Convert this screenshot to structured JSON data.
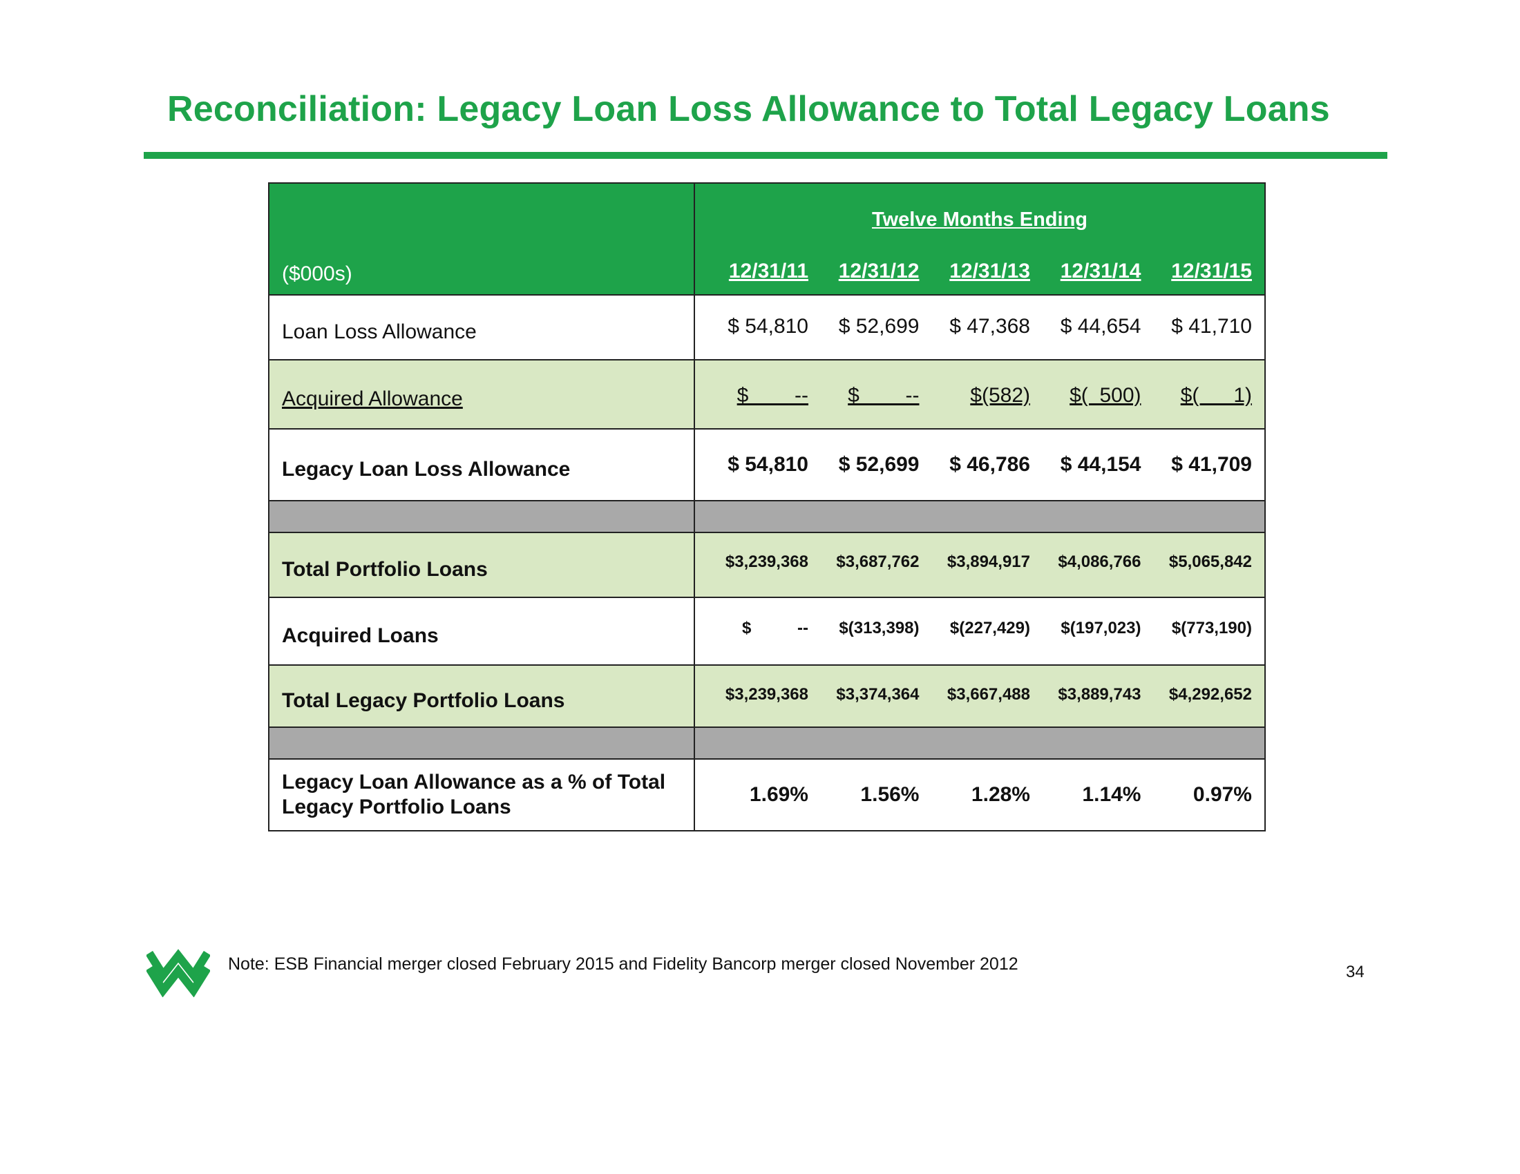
{
  "title": "Reconciliation: Legacy Loan Loss Allowance to Total Legacy Loans",
  "table": {
    "unit_label": "($000s)",
    "period_header": "Twelve Months Ending",
    "dates": [
      "12/31/11",
      "12/31/12",
      "12/31/13",
      "12/31/14",
      "12/31/15"
    ],
    "rows": {
      "loan_loss_allowance": {
        "label": "Loan Loss Allowance",
        "values": [
          "$ 54,810",
          "$ 52,699",
          "$ 47,368",
          "$ 44,654",
          "$ 41,710"
        ]
      },
      "acquired_allowance": {
        "label": "Acquired Allowance",
        "values": [
          "$        --",
          "$        --",
          "$(582)",
          "$(  500)",
          "$(      1)"
        ]
      },
      "legacy_loan_loss_allowance": {
        "label": "Legacy Loan Loss Allowance",
        "values": [
          "$ 54,810",
          "$ 52,699",
          "$ 46,786",
          "$ 44,154",
          "$ 41,709"
        ]
      },
      "total_portfolio_loans": {
        "label": "Total Portfolio Loans",
        "values": [
          "$3,239,368",
          "$3,687,762",
          "$3,894,917",
          "$4,086,766",
          "$5,065,842"
        ]
      },
      "acquired_loans": {
        "label": "Acquired Loans",
        "values": [
          "$          --",
          "$(313,398)",
          "$(227,429)",
          "$(197,023)",
          "$(773,190)"
        ]
      },
      "total_legacy_portfolio_loans": {
        "label": "Total Legacy Portfolio Loans",
        "values": [
          "$3,239,368",
          "$3,374,364",
          "$3,667,488",
          "$3,889,743",
          "$4,292,652"
        ]
      },
      "legacy_pct": {
        "label_line1": "Legacy Loan Allowance as a % of Total",
        "label_line2": "Legacy Portfolio Loans",
        "values": [
          "1.69%",
          "1.56%",
          "1.28%",
          "1.14%",
          "0.97%"
        ]
      }
    }
  },
  "footer": {
    "note": "Note: ESB Financial merger closed February 2015 and Fidelity Bancorp merger closed November 2012",
    "page_number": "34"
  },
  "colors": {
    "brand_green": "#1ea34a",
    "row_green": "#d9e8c4",
    "separator_gray": "#a9a9a9"
  }
}
